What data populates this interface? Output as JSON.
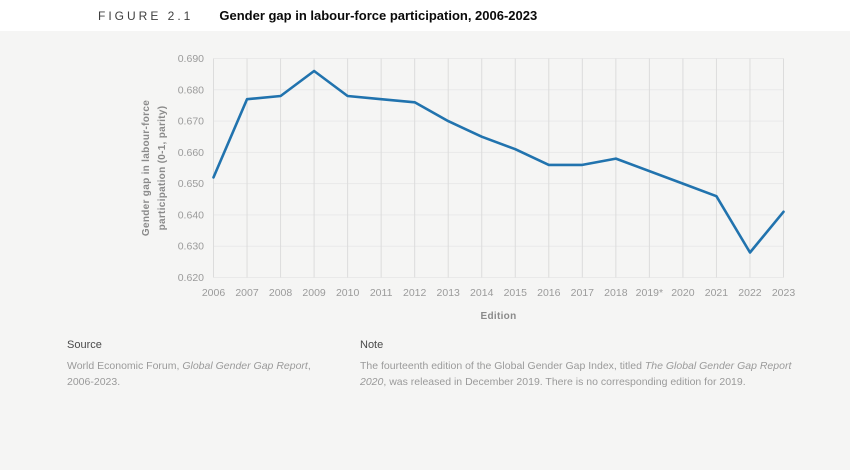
{
  "header": {
    "figure_label": "FIGURE 2.1",
    "title": "Gender gap in labour-force participation, 2006-2023"
  },
  "chart_data": {
    "type": "line",
    "title": "Gender gap in labour-force participation, 2006-2023",
    "xlabel": "Edition",
    "ylabel": "Gender gap in labour-force participation (0-1, parity)",
    "ylabel_lines": [
      "Gender gap in labour-force",
      "participation (0-1, parity)"
    ],
    "categories": [
      "2006",
      "2007",
      "2008",
      "2009",
      "2010",
      "2011",
      "2012",
      "2013",
      "2014",
      "2015",
      "2016",
      "2017",
      "2018",
      "2019*",
      "2020",
      "2021",
      "2022",
      "2023"
    ],
    "values": [
      0.652,
      0.677,
      0.678,
      0.686,
      0.678,
      0.677,
      0.676,
      0.67,
      0.665,
      0.661,
      0.656,
      0.656,
      0.658,
      null,
      0.65,
      0.646,
      0.628,
      0.641
    ],
    "ylim": [
      0.62,
      0.69
    ],
    "yticks": [
      0.62,
      0.63,
      0.64,
      0.65,
      0.66,
      0.67,
      0.68,
      0.69
    ],
    "grid": "both",
    "legend": "none",
    "line_color": "#2173ae",
    "colors": {
      "panel_bg": "#f5f5f4",
      "v_gridline": "#dcdcdc",
      "h_gridline": "#e9e9e9",
      "tick_text": "#9b9b9b",
      "axis_title": "#8a8a8a"
    }
  },
  "footer": {
    "source": {
      "heading": "Source",
      "segments": [
        {
          "text": "World Economic Forum, ",
          "italic": false
        },
        {
          "text": "Global Gender Gap Report",
          "italic": true
        },
        {
          "text": ", 2006-2023.",
          "italic": false
        }
      ]
    },
    "note": {
      "heading": "Note",
      "segments": [
        {
          "text": "The fourteenth edition of the Global Gender Gap Index, titled ",
          "italic": false
        },
        {
          "text": "The Global Gender Gap Report 2020",
          "italic": true
        },
        {
          "text": ", was released in December 2019. There is no corresponding edition for 2019.",
          "italic": false
        }
      ]
    }
  }
}
